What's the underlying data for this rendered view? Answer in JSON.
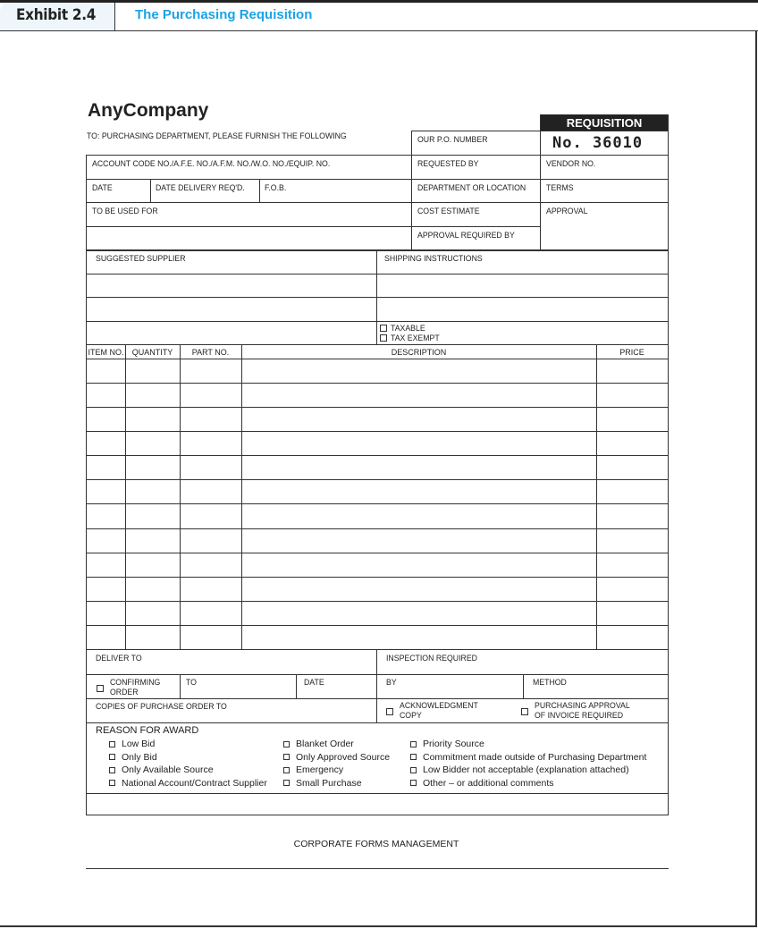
{
  "header": {
    "exhibit": "Exhibit 2.4",
    "title": "The Purchasing Requisition",
    "accent": "#1aa3e8"
  },
  "form": {
    "company": "AnyCompany",
    "to_line": "TO: PURCHASING DEPARTMENT, PLEASE FURNISH THE FOLLOWING",
    "requisition_label": "REQUISITION",
    "requisition_number": "No.  36010",
    "fields": {
      "our_po": "OUR P.O. NUMBER",
      "account_code": "ACCOUNT CODE NO./A.F.E. NO./A.F.M. NO./W.O. NO./EQUIP. NO.",
      "requested_by": "REQUESTED BY",
      "vendor_no": "VENDOR NO.",
      "date": "DATE",
      "date_delivery": "DATE DELIVERY REQ'D.",
      "fob": "F.O.B.",
      "department": "DEPARTMENT OR LOCATION",
      "terms": "TERMS",
      "to_be_used_for": "TO BE USED FOR",
      "cost_estimate": "COST ESTIMATE",
      "approval": "APPROVAL",
      "approval_required_by": "APPROVAL REQUIRED BY",
      "suggested_supplier": "SUGGESTED SUPPLIER",
      "shipping_instructions": "SHIPPING INSTRUCTIONS",
      "taxable": "TAXABLE",
      "tax_exempt": "TAX EXEMPT"
    },
    "table": {
      "columns": [
        "ITEM NO.",
        "QUANTITY",
        "PART NO.",
        "DESCRIPTION",
        "PRICE"
      ],
      "row_count": 12
    },
    "lower": {
      "deliver_to": "DELIVER TO",
      "inspection_required": "INSPECTION REQUIRED",
      "confirming_order": "CONFIRMING",
      "confirming_order2": "ORDER",
      "to": "TO",
      "date": "DATE",
      "by": "BY",
      "method": "METHOD",
      "copies": "COPIES OF PURCHASE ORDER TO",
      "ack": "ACKNOWLEDGMENT",
      "ack2": "COPY",
      "purch_approval": "PURCHASING APPROVAL",
      "purch_approval2": "OF INVOICE REQUIRED"
    },
    "reason": {
      "label": "REASON FOR AWARD",
      "col1": [
        "Low Bid",
        "Only Bid",
        "Only Available Source",
        "National Account/Contract Supplier"
      ],
      "col2": [
        "Blanket Order",
        "Only Approved Source",
        "Emergency",
        "Small Purchase"
      ],
      "col3": [
        "Priority Source",
        "Commitment made outside of Purchasing Department",
        "Low Bidder not acceptable (explanation attached)",
        "Other  –  or additional comments"
      ]
    },
    "footer": "CORPORATE FORMS MANAGEMENT"
  }
}
